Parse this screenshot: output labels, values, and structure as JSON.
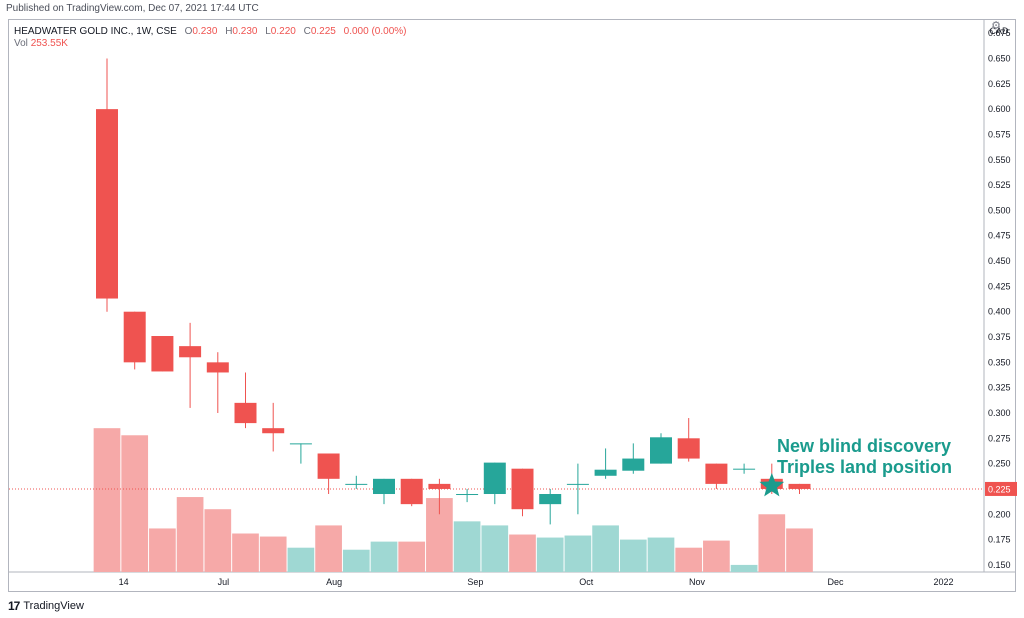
{
  "published_text": "Published on TradingView.com, Dec 07, 2021 17:44 UTC",
  "legend": {
    "symbol": "HEADWATER GOLD INC., 1W, CSE",
    "open_label": "O",
    "open": "0.230",
    "high_label": "H",
    "high": "0.230",
    "low_label": "L",
    "low": "0.220",
    "close_label": "C",
    "close": "0.225",
    "change": "0.000 (0.00%)",
    "vol_label": "Vol",
    "vol_value": "253.55K"
  },
  "footer": {
    "brand": "TradingView"
  },
  "colors": {
    "up": "#26a69a",
    "down": "#ef5350",
    "vol_up": "#9fd8d3",
    "vol_down": "#f6a9a8",
    "annotation": "#1a9b8d",
    "grid": "#f0f3fa"
  },
  "chart_data": {
    "type": "candlestick",
    "currency": "CAD",
    "y_ticks": [
      "0.675",
      "0.650",
      "0.625",
      "0.600",
      "0.575",
      "0.550",
      "0.525",
      "0.500",
      "0.475",
      "0.450",
      "0.425",
      "0.400",
      "0.375",
      "0.350",
      "0.325",
      "0.300",
      "0.275",
      "0.250",
      "0.225",
      "0.200",
      "0.175",
      "0.150"
    ],
    "ylim": [
      0.143,
      0.688
    ],
    "last_price": 0.225,
    "last_price_label": "0.225",
    "x_ticks": [
      {
        "label": "14",
        "index": 0.6
      },
      {
        "label": "Jul",
        "index": 4.2
      },
      {
        "label": "Aug",
        "index": 8.2
      },
      {
        "label": "Sep",
        "index": 13.3
      },
      {
        "label": "Oct",
        "index": 17.3
      },
      {
        "label": "Nov",
        "index": 21.3
      },
      {
        "label": "Dec",
        "index": 26.3
      },
      {
        "label": "2022",
        "index": 30.2
      }
    ],
    "candles": [
      {
        "o": 0.6,
        "h": 0.65,
        "l": 0.4,
        "c": 0.413
      },
      {
        "o": 0.4,
        "h": 0.4,
        "l": 0.343,
        "c": 0.35
      },
      {
        "o": 0.376,
        "h": 0.376,
        "l": 0.341,
        "c": 0.341
      },
      {
        "o": 0.366,
        "h": 0.389,
        "l": 0.305,
        "c": 0.355
      },
      {
        "o": 0.35,
        "h": 0.36,
        "l": 0.3,
        "c": 0.34
      },
      {
        "o": 0.31,
        "h": 0.34,
        "l": 0.285,
        "c": 0.29
      },
      {
        "o": 0.285,
        "h": 0.31,
        "l": 0.262,
        "c": 0.28
      },
      {
        "o": 0.27,
        "h": 0.27,
        "l": 0.25,
        "c": 0.27
      },
      {
        "o": 0.26,
        "h": 0.26,
        "l": 0.22,
        "c": 0.235
      },
      {
        "o": 0.23,
        "h": 0.238,
        "l": 0.225,
        "c": 0.23
      },
      {
        "o": 0.22,
        "h": 0.235,
        "l": 0.21,
        "c": 0.235
      },
      {
        "o": 0.235,
        "h": 0.235,
        "l": 0.208,
        "c": 0.21
      },
      {
        "o": 0.23,
        "h": 0.235,
        "l": 0.2,
        "c": 0.225
      },
      {
        "o": 0.22,
        "h": 0.225,
        "l": 0.212,
        "c": 0.22
      },
      {
        "o": 0.22,
        "h": 0.251,
        "l": 0.21,
        "c": 0.251
      },
      {
        "o": 0.245,
        "h": 0.245,
        "l": 0.198,
        "c": 0.205
      },
      {
        "o": 0.21,
        "h": 0.225,
        "l": 0.19,
        "c": 0.22
      },
      {
        "o": 0.23,
        "h": 0.25,
        "l": 0.2,
        "c": 0.23
      },
      {
        "o": 0.238,
        "h": 0.265,
        "l": 0.235,
        "c": 0.244
      },
      {
        "o": 0.243,
        "h": 0.27,
        "l": 0.24,
        "c": 0.255
      },
      {
        "o": 0.25,
        "h": 0.28,
        "l": 0.25,
        "c": 0.276
      },
      {
        "o": 0.275,
        "h": 0.295,
        "l": 0.252,
        "c": 0.255
      },
      {
        "o": 0.25,
        "h": 0.25,
        "l": 0.225,
        "c": 0.23
      },
      {
        "o": 0.245,
        "h": 0.25,
        "l": 0.24,
        "c": 0.245
      },
      {
        "o": 0.235,
        "h": 0.25,
        "l": 0.22,
        "c": 0.225
      },
      {
        "o": 0.23,
        "h": 0.23,
        "l": 0.22,
        "c": 0.225
      }
    ],
    "volume": {
      "note_scale": "relative",
      "values": [
        0.285,
        0.278,
        0.186,
        0.217,
        0.205,
        0.181,
        0.178,
        0.167,
        0.189,
        0.165,
        0.173,
        0.173,
        0.216,
        0.193,
        0.189,
        0.18,
        0.177,
        0.179,
        0.189,
        0.175,
        0.177,
        0.167,
        0.174,
        0.15,
        0.2,
        0.186
      ],
      "direction": [
        "down",
        "down",
        "down",
        "down",
        "down",
        "down",
        "down",
        "up",
        "down",
        "up",
        "up",
        "down",
        "down",
        "up",
        "up",
        "down",
        "up",
        "up",
        "up",
        "up",
        "up",
        "down",
        "down",
        "up",
        "down",
        "down"
      ]
    },
    "annotations": [
      {
        "text": "New blind discovery",
        "line": 1
      },
      {
        "text": "Triples land position",
        "line": 2
      }
    ],
    "marker": {
      "type": "star",
      "index": 24,
      "y": 0.228
    }
  }
}
